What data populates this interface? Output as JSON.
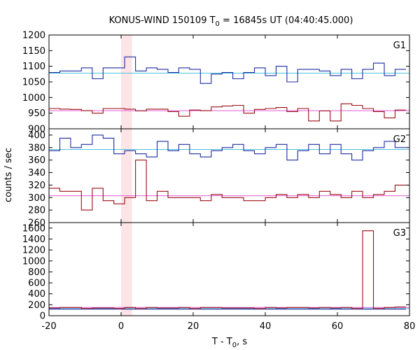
{
  "title": {
    "main": "KONUS-WIND 150109 T",
    "sub": "0",
    "rest": " = 16845s UT (04:40:45.000)"
  },
  "ylabel": "counts / sec",
  "xlabel": {
    "main": "T - T",
    "sub": "0",
    "rest": ", s"
  },
  "colors": {
    "blue_series": "#1c2fa3",
    "red_series": "#9b0f16",
    "blue_background": "#4cc2de",
    "red_background": "#e25bd6",
    "highlight_band": "#fde4e6"
  },
  "chart_data": [
    {
      "type": "line",
      "panel": "G1",
      "label": "G1",
      "xlim": [
        -20,
        80
      ],
      "ylim": [
        900,
        1200
      ],
      "yticks": [
        900,
        950,
        1000,
        1050,
        1100,
        1150,
        1200
      ],
      "xticks": [
        -20,
        0,
        20,
        40,
        60,
        80
      ],
      "highlight_x": [
        0,
        3
      ],
      "bin_edges": [
        -20,
        -17,
        -14,
        -11,
        -8,
        -5,
        -2,
        1,
        4,
        7,
        10,
        13,
        16,
        19,
        22,
        25,
        28,
        31,
        34,
        37,
        40,
        43,
        46,
        49,
        52,
        55,
        58,
        61,
        64,
        67,
        70,
        73,
        76,
        79
      ],
      "series": [
        {
          "values": [
            1080,
            1085,
            1085,
            1095,
            1060,
            1095,
            1095,
            1130,
            1085,
            1095,
            1090,
            1080,
            1095,
            1090,
            1045,
            1075,
            1080,
            1060,
            1080,
            1095,
            1070,
            1100,
            1050,
            1090,
            1090,
            1085,
            1070,
            1090,
            1060,
            1090,
            1110,
            1070,
            1090
          ]
        },
        {
          "values": [
            965,
            963,
            962,
            958,
            950,
            965,
            965,
            963,
            957,
            963,
            963,
            955,
            940,
            960,
            958,
            970,
            973,
            975,
            950,
            962,
            965,
            968,
            955,
            965,
            925,
            957,
            925,
            980,
            975,
            965,
            955,
            935,
            960
          ]
        }
      ],
      "background_levels": [
        1078,
        958
      ]
    },
    {
      "type": "line",
      "panel": "G2",
      "label": "G2",
      "xlim": [
        -20,
        80
      ],
      "ylim": [
        260,
        410
      ],
      "yticks": [
        260,
        280,
        300,
        320,
        340,
        360,
        380,
        400
      ],
      "xticks": [
        -20,
        0,
        20,
        40,
        60,
        80
      ],
      "highlight_x": [
        0,
        3
      ],
      "bin_edges": [
        -20,
        -17,
        -14,
        -11,
        -8,
        -5,
        -2,
        1,
        4,
        7,
        10,
        13,
        16,
        19,
        22,
        25,
        28,
        31,
        34,
        37,
        40,
        43,
        46,
        49,
        52,
        55,
        58,
        61,
        64,
        67,
        70,
        73,
        76,
        79
      ],
      "series": [
        {
          "values": [
            375,
            395,
            380,
            385,
            400,
            395,
            370,
            375,
            370,
            365,
            390,
            375,
            385,
            370,
            365,
            375,
            380,
            385,
            375,
            370,
            380,
            385,
            360,
            375,
            385,
            370,
            385,
            370,
            360,
            375,
            380,
            390,
            380
          ]
        },
        {
          "values": [
            315,
            310,
            310,
            280,
            315,
            295,
            290,
            300,
            360,
            295,
            310,
            300,
            300,
            300,
            295,
            305,
            300,
            300,
            295,
            295,
            300,
            305,
            300,
            305,
            300,
            310,
            305,
            300,
            310,
            300,
            305,
            310,
            320
          ]
        }
      ],
      "background_levels": [
        377,
        303
      ]
    },
    {
      "type": "line",
      "panel": "G3",
      "label": "G3",
      "xlim": [
        -20,
        80
      ],
      "ylim": [
        0,
        1700
      ],
      "yticks": [
        0,
        200,
        400,
        600,
        800,
        1000,
        1200,
        1400,
        1600
      ],
      "xticks": [
        -20,
        0,
        20,
        40,
        60,
        80
      ],
      "highlight_x": [
        0,
        3
      ],
      "bin_edges": [
        -20,
        -17,
        -14,
        -11,
        -8,
        -5,
        -2,
        1,
        4,
        7,
        10,
        13,
        16,
        19,
        22,
        25,
        28,
        31,
        34,
        37,
        40,
        43,
        46,
        49,
        52,
        55,
        58,
        61,
        64,
        67,
        70,
        73,
        76,
        79
      ],
      "series": [
        {
          "values": [
            120,
            120,
            120,
            120,
            120,
            120,
            120,
            120,
            120,
            120,
            120,
            120,
            120,
            120,
            120,
            120,
            120,
            120,
            120,
            120,
            120,
            120,
            120,
            120,
            120,
            120,
            120,
            120,
            120,
            120,
            120,
            120,
            120
          ]
        },
        {
          "values": [
            140,
            150,
            150,
            130,
            140,
            140,
            130,
            150,
            130,
            150,
            140,
            140,
            150,
            130,
            150,
            150,
            140,
            140,
            140,
            130,
            150,
            140,
            150,
            150,
            140,
            150,
            140,
            150,
            130,
            1550,
            130,
            150,
            160
          ]
        }
      ],
      "background_levels": [
        130,
        150
      ]
    }
  ]
}
